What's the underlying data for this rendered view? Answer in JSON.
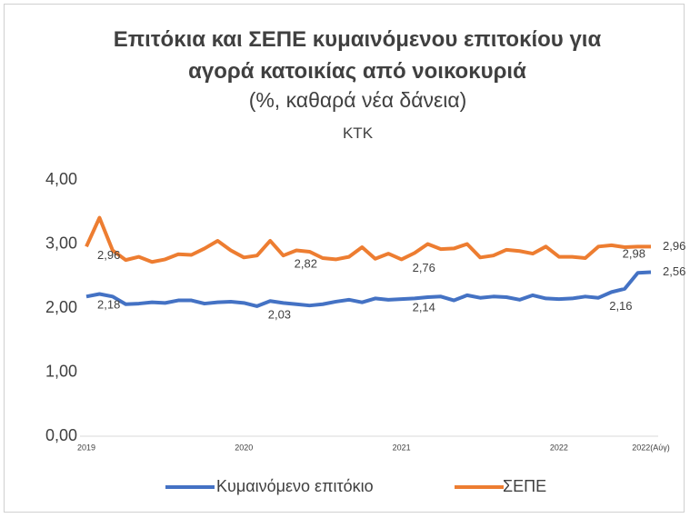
{
  "chart_data": {
    "type": "line",
    "title": "Επιτόκια και ΣΕΠΕ κυμαινόμενου επιτοκίου για αγορά κατοικίας από νοικοκυριά",
    "subtitle": "(%, καθαρά νέα δάνεια)",
    "source": "ΚΤΚ",
    "categories": [
      "2019",
      null,
      null,
      null,
      null,
      null,
      null,
      null,
      null,
      null,
      null,
      null,
      "2020",
      null,
      null,
      null,
      null,
      null,
      null,
      null,
      null,
      null,
      null,
      null,
      "2021",
      null,
      null,
      null,
      null,
      null,
      null,
      null,
      null,
      null,
      null,
      null,
      "2022",
      null,
      null,
      null,
      null,
      null,
      null,
      "2022(Αύγ)"
    ],
    "ylim": [
      0,
      4
    ],
    "yticks": [
      {
        "value": 0,
        "label": "0,00"
      },
      {
        "value": 1,
        "label": "1,00"
      },
      {
        "value": 2,
        "label": "2,00"
      },
      {
        "value": 3,
        "label": "3,00"
      },
      {
        "value": 4,
        "label": "4,00"
      }
    ],
    "grid": false,
    "legend": "bottom",
    "series": [
      {
        "name": "Κυμαινόμενο επιτόκιο",
        "color": "#4472c4",
        "values": [
          2.18,
          2.22,
          2.18,
          2.06,
          2.07,
          2.09,
          2.08,
          2.12,
          2.12,
          2.07,
          2.09,
          2.1,
          2.08,
          2.03,
          2.11,
          2.08,
          2.06,
          2.04,
          2.06,
          2.1,
          2.13,
          2.09,
          2.15,
          2.13,
          2.14,
          2.15,
          2.17,
          2.18,
          2.12,
          2.2,
          2.16,
          2.18,
          2.17,
          2.13,
          2.2,
          2.15,
          2.14,
          2.15,
          2.18,
          2.16,
          2.25,
          2.3,
          2.55,
          2.56
        ],
        "value_labels": [
          "2,18",
          null,
          null,
          null,
          null,
          null,
          null,
          null,
          null,
          null,
          null,
          null,
          null,
          "2,03",
          null,
          null,
          null,
          null,
          null,
          null,
          null,
          null,
          null,
          null,
          "2,14",
          null,
          null,
          null,
          null,
          null,
          null,
          null,
          null,
          null,
          null,
          null,
          null,
          null,
          null,
          "2,16",
          null,
          null,
          null,
          "2,56"
        ]
      },
      {
        "name": "ΣΕΠΕ",
        "color": "#ed7d31",
        "values": [
          2.96,
          3.41,
          2.9,
          2.75,
          2.8,
          2.72,
          2.76,
          2.84,
          2.83,
          2.93,
          3.05,
          2.9,
          2.79,
          2.82,
          3.05,
          2.82,
          2.9,
          2.88,
          2.78,
          2.76,
          2.8,
          2.95,
          2.77,
          2.85,
          2.76,
          2.86,
          3.0,
          2.92,
          2.93,
          3.0,
          2.79,
          2.82,
          2.91,
          2.89,
          2.85,
          2.96,
          2.8,
          2.8,
          2.78,
          2.96,
          2.98,
          2.95,
          2.96,
          2.96
        ],
        "value_labels": [
          "2,96",
          null,
          null,
          null,
          null,
          null,
          null,
          null,
          null,
          null,
          null,
          null,
          null,
          null,
          null,
          "2,82",
          null,
          null,
          null,
          null,
          null,
          null,
          null,
          null,
          "2,76",
          null,
          null,
          null,
          null,
          null,
          null,
          null,
          null,
          null,
          null,
          null,
          null,
          null,
          null,
          null,
          "2,98",
          null,
          null,
          "2,96"
        ]
      }
    ]
  }
}
